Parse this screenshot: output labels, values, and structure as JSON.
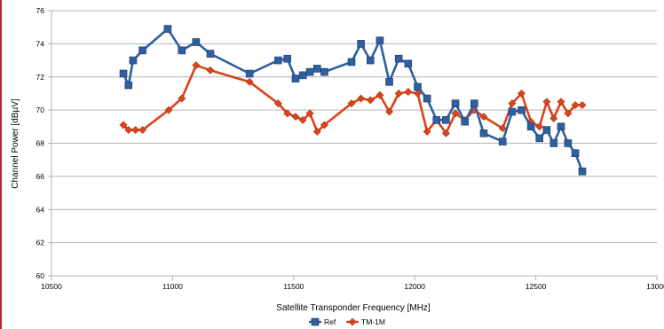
{
  "chart_data": {
    "type": "line",
    "title": "",
    "xlabel": "Satellite Transponder Frequency [MHz]",
    "ylabel": "Channel Power [dBµV]",
    "xlim": [
      10500,
      13000
    ],
    "ylim": [
      60,
      76
    ],
    "x_ticks": [
      10500,
      11000,
      11500,
      12000,
      12500,
      13000
    ],
    "y_ticks": [
      60,
      62,
      64,
      66,
      68,
      70,
      72,
      74,
      76
    ],
    "grid": "horizontal",
    "legend_position": "bottom",
    "series": [
      {
        "name": "Ref",
        "color": "#2f5f9e",
        "marker": "square",
        "points": [
          [
            10797,
            72.2
          ],
          [
            10818,
            71.5
          ],
          [
            10837,
            73.0
          ],
          [
            10876,
            73.6
          ],
          [
            10980,
            74.9
          ],
          [
            11038,
            73.6
          ],
          [
            11097,
            74.1
          ],
          [
            11156,
            73.4
          ],
          [
            11318,
            72.2
          ],
          [
            11436,
            73.0
          ],
          [
            11474,
            73.1
          ],
          [
            11508,
            71.9
          ],
          [
            11538,
            72.1
          ],
          [
            11567,
            72.3
          ],
          [
            11597,
            72.5
          ],
          [
            11627,
            72.3
          ],
          [
            11739,
            72.9
          ],
          [
            11778,
            74.0
          ],
          [
            11817,
            73.0
          ],
          [
            11856,
            74.2
          ],
          [
            11895,
            71.7
          ],
          [
            11934,
            73.1
          ],
          [
            11973,
            72.8
          ],
          [
            12012,
            71.4
          ],
          [
            12051,
            70.7
          ],
          [
            12090,
            69.4
          ],
          [
            12129,
            69.4
          ],
          [
            12168,
            70.4
          ],
          [
            12207,
            69.3
          ],
          [
            12246,
            70.4
          ],
          [
            12285,
            68.6
          ],
          [
            12363,
            68.1
          ],
          [
            12402,
            69.9
          ],
          [
            12441,
            70.0
          ],
          [
            12480,
            69.0
          ],
          [
            12515,
            68.3
          ],
          [
            12545,
            68.8
          ],
          [
            12574,
            68.0
          ],
          [
            12604,
            69.0
          ],
          [
            12633,
            68.0
          ],
          [
            12663,
            67.4
          ],
          [
            12692,
            66.3
          ]
        ]
      },
      {
        "name": "TM-1M",
        "color": "#d9441c",
        "marker": "diamond",
        "points": [
          [
            10797,
            69.1
          ],
          [
            10818,
            68.8
          ],
          [
            10847,
            68.8
          ],
          [
            10876,
            68.8
          ],
          [
            10984,
            70.0
          ],
          [
            11038,
            70.7
          ],
          [
            11097,
            72.7
          ],
          [
            11156,
            72.4
          ],
          [
            11318,
            71.7
          ],
          [
            11436,
            70.4
          ],
          [
            11474,
            69.8
          ],
          [
            11508,
            69.6
          ],
          [
            11538,
            69.4
          ],
          [
            11567,
            69.8
          ],
          [
            11597,
            68.7
          ],
          [
            11627,
            69.1
          ],
          [
            11739,
            70.4
          ],
          [
            11778,
            70.7
          ],
          [
            11817,
            70.6
          ],
          [
            11856,
            70.9
          ],
          [
            11895,
            69.9
          ],
          [
            11934,
            71.0
          ],
          [
            11973,
            71.1
          ],
          [
            12012,
            71.0
          ],
          [
            12051,
            68.7
          ],
          [
            12090,
            69.4
          ],
          [
            12129,
            68.6
          ],
          [
            12168,
            69.8
          ],
          [
            12207,
            69.4
          ],
          [
            12246,
            70.0
          ],
          [
            12285,
            69.6
          ],
          [
            12363,
            68.9
          ],
          [
            12402,
            70.4
          ],
          [
            12441,
            71.0
          ],
          [
            12480,
            69.3
          ],
          [
            12515,
            69.0
          ],
          [
            12545,
            70.5
          ],
          [
            12574,
            69.5
          ],
          [
            12604,
            70.5
          ],
          [
            12633,
            69.8
          ],
          [
            12663,
            70.3
          ],
          [
            12692,
            70.3
          ]
        ]
      }
    ]
  }
}
